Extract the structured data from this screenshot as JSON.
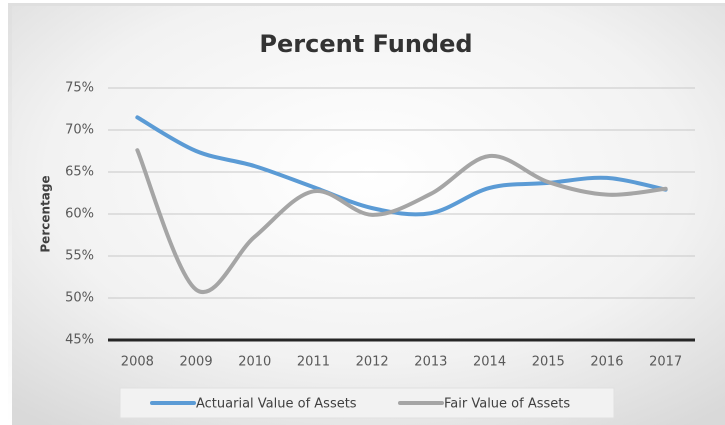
{
  "chart_data": {
    "type": "line",
    "title": "Percent Funded",
    "y_label": "Percentage",
    "categories": [
      "2008",
      "2009",
      "2010",
      "2011",
      "2012",
      "2013",
      "2014",
      "2015",
      "2016",
      "2017"
    ],
    "series": [
      {
        "name": "Actuarial Value of Assets",
        "color": "#5b9bd5",
        "values": [
          71.5,
          67.5,
          65.7,
          63.2,
          60.7,
          60.1,
          63.1,
          63.7,
          64.3,
          62.9
        ]
      },
      {
        "name": "Fair Value of Assets",
        "color": "#a5a5a5",
        "values": [
          67.6,
          51.0,
          57.3,
          62.7,
          59.9,
          62.4,
          66.9,
          63.8,
          62.3,
          63.0
        ]
      }
    ],
    "ylim": [
      45,
      75
    ],
    "yticks": [
      {
        "value": 45,
        "label": "45%"
      },
      {
        "value": 50,
        "label": "50%"
      },
      {
        "value": 55,
        "label": "55%"
      },
      {
        "value": 60,
        "label": "60%"
      },
      {
        "value": 65,
        "label": "65%"
      },
      {
        "value": 70,
        "label": "70%"
      },
      {
        "value": 75,
        "label": "75%"
      }
    ],
    "grid": true,
    "smooth": true,
    "legend": "bottom"
  }
}
